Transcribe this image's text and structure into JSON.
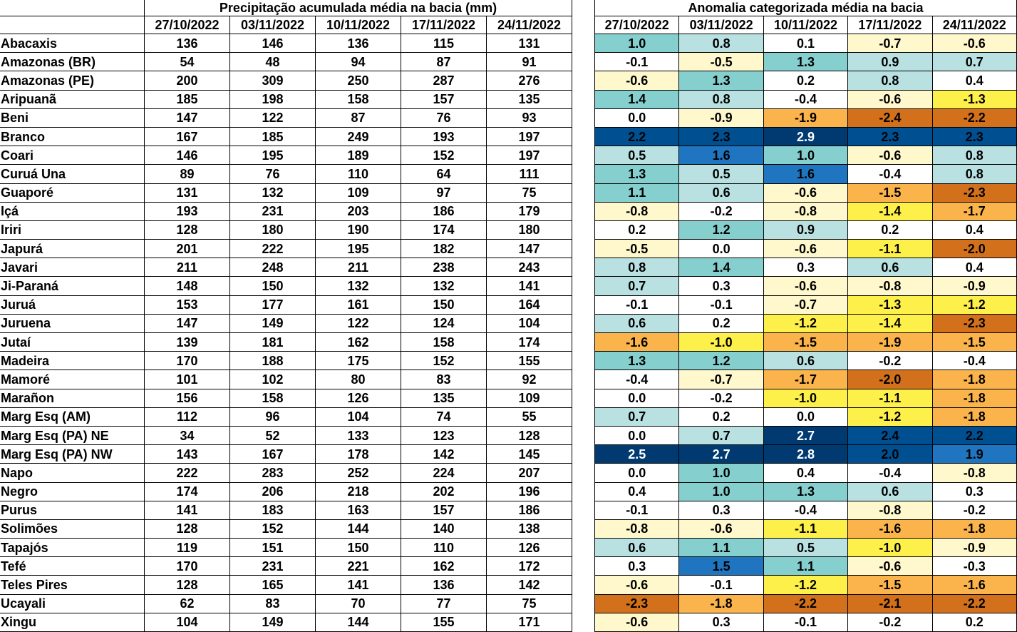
{
  "precip_table": {
    "title": "Precipitação acumulada média na bacia (mm)",
    "dates": [
      "27/10/2022",
      "03/11/2022",
      "10/11/2022",
      "17/11/2022",
      "24/11/2022"
    ]
  },
  "anomaly_table": {
    "title": "Anomalia categorizada média na bacia",
    "dates": [
      "27/10/2022",
      "03/11/2022",
      "10/11/2022",
      "17/11/2022",
      "24/11/2022"
    ]
  },
  "color_scale": {
    "le_-2.0": "#d2701c",
    "-2.0_-1.5": "#fbb44c",
    "-1.5_-1.0": "#fef04a",
    "-1.0_-0.5": "#fff8cc",
    "-0.5_0.5": "#ffffff",
    "0.5_1.0": "#b9e1e1",
    "1.0_1.5": "#86cfcf",
    "1.5_2.0": "#1f75c0",
    "2.0_2.5": "#004f91",
    "ge_2.5": "#003a70"
  },
  "rows": [
    {
      "name": "Abacaxis",
      "precip": [
        "136",
        "146",
        "136",
        "115",
        "131"
      ],
      "anom": [
        "1.0",
        "0.8",
        "0.1",
        "-0.7",
        "-0.6"
      ]
    },
    {
      "name": "Amazonas (BR)",
      "precip": [
        "54",
        "48",
        "94",
        "87",
        "91"
      ],
      "anom": [
        "-0.1",
        "-0.5",
        "1.3",
        "0.9",
        "0.7"
      ]
    },
    {
      "name": "Amazonas (PE)",
      "precip": [
        "200",
        "309",
        "250",
        "287",
        "276"
      ],
      "anom": [
        "-0.6",
        "1.3",
        "0.2",
        "0.8",
        "0.4"
      ]
    },
    {
      "name": "Aripuanã",
      "precip": [
        "185",
        "198",
        "158",
        "157",
        "135"
      ],
      "anom": [
        "1.4",
        "0.8",
        "-0.4",
        "-0.6",
        "-1.3"
      ]
    },
    {
      "name": "Beni",
      "precip": [
        "147",
        "122",
        "87",
        "76",
        "93"
      ],
      "anom": [
        "0.0",
        "-0.9",
        "-1.9",
        "-2.4",
        "-2.2"
      ]
    },
    {
      "name": "Branco",
      "precip": [
        "167",
        "185",
        "249",
        "193",
        "197"
      ],
      "anom": [
        "2.2",
        "2.3",
        "2.9",
        "2.3",
        "2.3"
      ]
    },
    {
      "name": "Coari",
      "precip": [
        "146",
        "195",
        "189",
        "152",
        "197"
      ],
      "anom": [
        "0.5",
        "1.6",
        "1.0",
        "-0.6",
        "0.8"
      ]
    },
    {
      "name": "Curuá Una",
      "precip": [
        "89",
        "76",
        "110",
        "64",
        "111"
      ],
      "anom": [
        "1.3",
        "0.5",
        "1.6",
        "-0.4",
        "0.8"
      ]
    },
    {
      "name": "Guaporé",
      "precip": [
        "131",
        "132",
        "109",
        "97",
        "75"
      ],
      "anom": [
        "1.1",
        "0.6",
        "-0.6",
        "-1.5",
        "-2.3"
      ]
    },
    {
      "name": "Içá",
      "precip": [
        "193",
        "231",
        "203",
        "186",
        "179"
      ],
      "anom": [
        "-0.8",
        "-0.2",
        "-0.8",
        "-1.4",
        "-1.7"
      ]
    },
    {
      "name": "Iriri",
      "precip": [
        "128",
        "180",
        "190",
        "174",
        "180"
      ],
      "anom": [
        "0.2",
        "1.2",
        "0.9",
        "0.2",
        "0.4"
      ]
    },
    {
      "name": "Japurá",
      "precip": [
        "201",
        "222",
        "195",
        "182",
        "147"
      ],
      "anom": [
        "-0.5",
        "0.0",
        "-0.6",
        "-1.1",
        "-2.0"
      ]
    },
    {
      "name": "Javari",
      "precip": [
        "211",
        "248",
        "211",
        "238",
        "243"
      ],
      "anom": [
        "0.8",
        "1.4",
        "0.3",
        "0.6",
        "0.4"
      ]
    },
    {
      "name": "Ji-Paraná",
      "precip": [
        "148",
        "150",
        "132",
        "132",
        "141"
      ],
      "anom": [
        "0.7",
        "0.3",
        "-0.6",
        "-0.8",
        "-0.9"
      ]
    },
    {
      "name": "Juruá",
      "precip": [
        "153",
        "177",
        "161",
        "150",
        "164"
      ],
      "anom": [
        "-0.1",
        "-0.1",
        "-0.7",
        "-1.3",
        "-1.2"
      ]
    },
    {
      "name": "Juruena",
      "precip": [
        "147",
        "149",
        "122",
        "124",
        "104"
      ],
      "anom": [
        "0.6",
        "0.2",
        "-1.2",
        "-1.4",
        "-2.3"
      ]
    },
    {
      "name": "Jutaí",
      "precip": [
        "139",
        "181",
        "162",
        "158",
        "174"
      ],
      "anom": [
        "-1.6",
        "-1.0",
        "-1.5",
        "-1.9",
        "-1.5"
      ]
    },
    {
      "name": "Madeira",
      "precip": [
        "170",
        "188",
        "175",
        "152",
        "155"
      ],
      "anom": [
        "1.3",
        "1.2",
        "0.6",
        "-0.2",
        "-0.4"
      ]
    },
    {
      "name": "Mamoré",
      "precip": [
        "101",
        "102",
        "80",
        "83",
        "92"
      ],
      "anom": [
        "-0.4",
        "-0.7",
        "-1.7",
        "-2.0",
        "-1.8"
      ]
    },
    {
      "name": "Marañon",
      "precip": [
        "156",
        "158",
        "126",
        "135",
        "109"
      ],
      "anom": [
        "0.0",
        "-0.2",
        "-1.0",
        "-1.1",
        "-1.8"
      ]
    },
    {
      "name": "Marg Esq (AM)",
      "precip": [
        "112",
        "96",
        "104",
        "74",
        "55"
      ],
      "anom": [
        "0.7",
        "0.2",
        "0.0",
        "-1.2",
        "-1.8"
      ]
    },
    {
      "name": "Marg Esq (PA) NE",
      "precip": [
        "34",
        "52",
        "133",
        "123",
        "128"
      ],
      "anom": [
        "0.0",
        "0.7",
        "2.7",
        "2.4",
        "2.2"
      ]
    },
    {
      "name": "Marg Esq (PA) NW",
      "precip": [
        "143",
        "167",
        "178",
        "142",
        "145"
      ],
      "anom": [
        "2.5",
        "2.7",
        "2.8",
        "2.0",
        "1.9"
      ]
    },
    {
      "name": "Napo",
      "precip": [
        "222",
        "283",
        "252",
        "224",
        "207"
      ],
      "anom": [
        "0.0",
        "1.0",
        "0.4",
        "-0.4",
        "-0.8"
      ]
    },
    {
      "name": "Negro",
      "precip": [
        "174",
        "206",
        "218",
        "202",
        "196"
      ],
      "anom": [
        "0.4",
        "1.0",
        "1.3",
        "0.6",
        "0.3"
      ]
    },
    {
      "name": "Purus",
      "precip": [
        "141",
        "183",
        "163",
        "157",
        "186"
      ],
      "anom": [
        "-0.1",
        "0.3",
        "-0.4",
        "-0.8",
        "-0.2"
      ]
    },
    {
      "name": "Solimões",
      "precip": [
        "128",
        "152",
        "144",
        "140",
        "138"
      ],
      "anom": [
        "-0.8",
        "-0.6",
        "-1.1",
        "-1.6",
        "-1.8"
      ]
    },
    {
      "name": "Tapajós",
      "precip": [
        "119",
        "151",
        "150",
        "110",
        "126"
      ],
      "anom": [
        "0.6",
        "1.1",
        "0.5",
        "-1.0",
        "-0.9"
      ]
    },
    {
      "name": "Tefé",
      "precip": [
        "170",
        "231",
        "221",
        "162",
        "172"
      ],
      "anom": [
        "0.3",
        "1.5",
        "1.1",
        "-0.6",
        "-0.3"
      ]
    },
    {
      "name": "Teles Pires",
      "precip": [
        "128",
        "165",
        "141",
        "136",
        "142"
      ],
      "anom": [
        "-0.6",
        "-0.1",
        "-1.2",
        "-1.5",
        "-1.6"
      ]
    },
    {
      "name": "Ucayali",
      "precip": [
        "62",
        "83",
        "70",
        "77",
        "75"
      ],
      "anom": [
        "-2.3",
        "-1.8",
        "-2.2",
        "-2.1",
        "-2.2"
      ]
    },
    {
      "name": "Xingu",
      "precip": [
        "104",
        "149",
        "144",
        "155",
        "171"
      ],
      "anom": [
        "-0.6",
        "0.3",
        "-0.1",
        "-0.2",
        "0.2"
      ]
    }
  ],
  "chart_data": {
    "type": "table",
    "title": [
      "Precipitação acumulada média na bacia (mm)",
      "Anomalia categorizada média na bacia"
    ],
    "categories": [
      "27/10/2022",
      "03/11/2022",
      "10/11/2022",
      "17/11/2022",
      "24/11/2022"
    ]
  }
}
